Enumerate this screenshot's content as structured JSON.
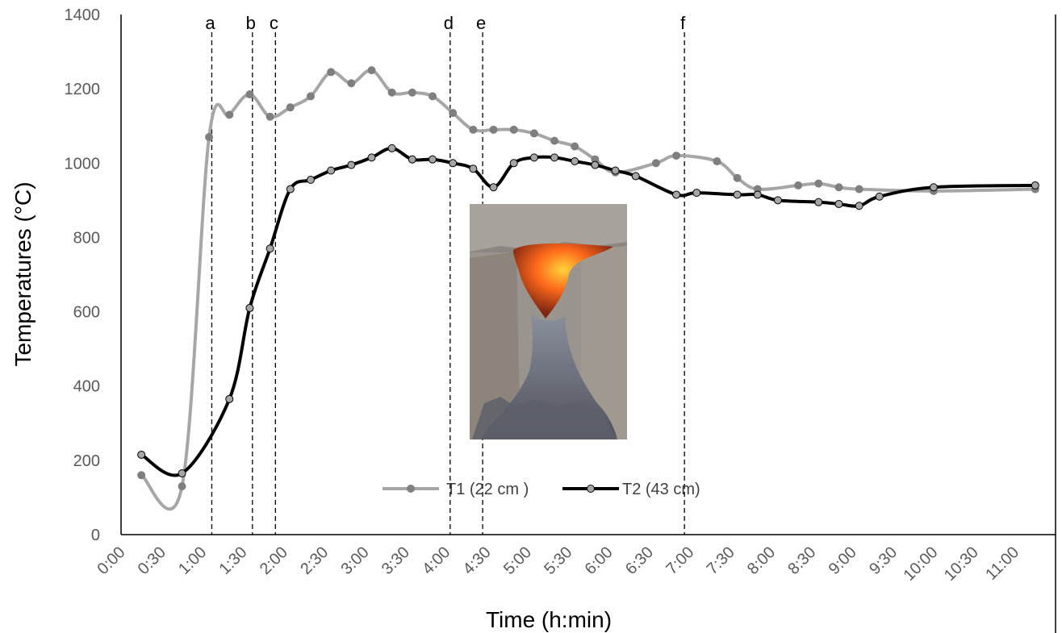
{
  "chart_data": {
    "type": "line",
    "xlabel": "Time (h:min)",
    "ylabel": "Temperatures (°C)",
    "x_unit": "minutes",
    "x_ticks": [
      "0:00",
      "0:30",
      "1:00",
      "1:30",
      "2:00",
      "2:30",
      "3:00",
      "3:30",
      "4:00",
      "4:30",
      "5:00",
      "5:30",
      "6:00",
      "6:30",
      "7:00",
      "7:30",
      "8:00",
      "8:30",
      "9:00",
      "9:30",
      "10:00",
      "10:30",
      "11:00"
    ],
    "xlim": [
      0,
      690
    ],
    "ylim": [
      0,
      1400
    ],
    "y_ticks": [
      0,
      200,
      400,
      600,
      800,
      1000,
      1200,
      1400
    ],
    "grid": false,
    "legend_position": "bottom-center",
    "series": [
      {
        "name": "T1 (22 cm )",
        "color": "#a6a6a6",
        "marker_color": "#7f7f7f",
        "points": [
          [
            15,
            160
          ],
          [
            45,
            130
          ],
          [
            65,
            1070
          ],
          [
            80,
            1130
          ],
          [
            95,
            1185
          ],
          [
            110,
            1125
          ],
          [
            125,
            1150
          ],
          [
            140,
            1180
          ],
          [
            155,
            1245
          ],
          [
            170,
            1215
          ],
          [
            185,
            1250
          ],
          [
            200,
            1190
          ],
          [
            215,
            1190
          ],
          [
            230,
            1180
          ],
          [
            245,
            1135
          ],
          [
            260,
            1090
          ],
          [
            275,
            1090
          ],
          [
            290,
            1090
          ],
          [
            305,
            1080
          ],
          [
            320,
            1060
          ],
          [
            335,
            1045
          ],
          [
            350,
            1010
          ],
          [
            365,
            975
          ],
          [
            395,
            1000
          ],
          [
            410,
            1020
          ],
          [
            440,
            1005
          ],
          [
            455,
            960
          ],
          [
            470,
            930
          ],
          [
            500,
            940
          ],
          [
            515,
            945
          ],
          [
            530,
            935
          ],
          [
            545,
            930
          ],
          [
            600,
            925
          ],
          [
            675,
            930
          ]
        ]
      },
      {
        "name": "T2 (43 cm)",
        "color": "#000000",
        "marker_color": "#a6a6a6",
        "points": [
          [
            15,
            215
          ],
          [
            45,
            165
          ],
          [
            80,
            365
          ],
          [
            95,
            610
          ],
          [
            110,
            770
          ],
          [
            125,
            930
          ],
          [
            140,
            955
          ],
          [
            155,
            980
          ],
          [
            170,
            995
          ],
          [
            185,
            1015
          ],
          [
            200,
            1040
          ],
          [
            215,
            1010
          ],
          [
            230,
            1010
          ],
          [
            245,
            1000
          ],
          [
            260,
            985
          ],
          [
            275,
            935
          ],
          [
            290,
            1000
          ],
          [
            305,
            1015
          ],
          [
            320,
            1015
          ],
          [
            335,
            1005
          ],
          [
            350,
            995
          ],
          [
            365,
            980
          ],
          [
            380,
            965
          ],
          [
            410,
            915
          ],
          [
            425,
            920
          ],
          [
            455,
            915
          ],
          [
            470,
            915
          ],
          [
            485,
            900
          ],
          [
            515,
            895
          ],
          [
            530,
            890
          ],
          [
            545,
            885
          ],
          [
            560,
            910
          ],
          [
            600,
            935
          ],
          [
            675,
            940
          ]
        ]
      }
    ],
    "vertical_markers": [
      {
        "label": "a",
        "x": 67
      },
      {
        "label": "b",
        "x": 97
      },
      {
        "label": "c",
        "x": 114
      },
      {
        "label": "d",
        "x": 243
      },
      {
        "label": "e",
        "x": 267
      },
      {
        "label": "f",
        "x": 416
      }
    ]
  },
  "inset_photo": {
    "subject": "kiln-fire-photo",
    "colors": {
      "rock": "#8f8a86",
      "flame": "#ff6a1a",
      "ash": "#6b6e78"
    }
  }
}
